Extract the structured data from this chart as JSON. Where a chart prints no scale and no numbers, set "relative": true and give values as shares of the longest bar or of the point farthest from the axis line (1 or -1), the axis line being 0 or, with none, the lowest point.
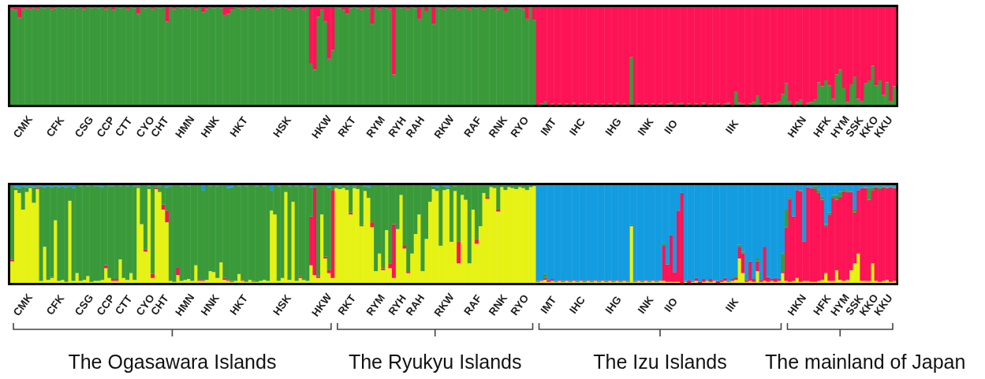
{
  "chart_data": [
    {
      "type": "bar",
      "stacked": true,
      "relative": true,
      "categories": [
        null,
        null,
        null,
        "CMK",
        null,
        null,
        null,
        null,
        null,
        null,
        null,
        null,
        "CFK",
        null,
        null,
        null,
        null,
        null,
        null,
        null,
        "CSG",
        null,
        null,
        null,
        null,
        null,
        "CCP",
        null,
        null,
        null,
        null,
        "CTT",
        null,
        null,
        null,
        null,
        null,
        "CYO",
        null,
        null,
        null,
        "CHT",
        null,
        null,
        null,
        null,
        null,
        null,
        "HMN",
        null,
        null,
        null,
        null,
        null,
        null,
        "HNK",
        null,
        null,
        null,
        null,
        null,
        null,
        null,
        "HKT",
        null,
        null,
        null,
        null,
        null,
        null,
        null,
        null,
        null,
        null,
        null,
        "HSK",
        null,
        null,
        null,
        null,
        null,
        null,
        null,
        null,
        null,
        null,
        "HKW",
        null,
        null,
        null,
        null,
        null,
        null,
        "RKT",
        null,
        null,
        null,
        null,
        null,
        null,
        null,
        "RYM",
        null,
        null,
        null,
        null,
        null,
        "RYH",
        null,
        null,
        null,
        null,
        "RAH",
        null,
        null,
        null,
        null,
        null,
        null,
        null,
        "RKW",
        null,
        null,
        null,
        null,
        null,
        null,
        null,
        "RAF",
        null,
        null,
        null,
        null,
        null,
        null,
        "RNK",
        null,
        null,
        null,
        null,
        null,
        "RYO",
        null,
        null,
        null,
        null,
        null,
        null,
        null,
        "IMT",
        null,
        null,
        null,
        null,
        null,
        null,
        null,
        "IHC",
        null,
        null,
        null,
        null,
        null,
        null,
        null,
        null,
        null,
        "IHG",
        null,
        null,
        null,
        null,
        null,
        null,
        null,
        null,
        "INK",
        null,
        null,
        null,
        null,
        null,
        null,
        "IIO",
        null,
        null,
        null,
        null,
        null,
        null,
        null,
        null,
        null,
        null,
        null,
        null,
        null,
        null,
        null,
        null,
        "IIK",
        null,
        null,
        null,
        null,
        null,
        null,
        null,
        null,
        null,
        null,
        null,
        null,
        null,
        null,
        null,
        null,
        null,
        "HKN",
        null,
        null,
        null,
        null,
        null,
        null,
        "HFK",
        null,
        null,
        null,
        null,
        "HYM",
        null,
        null,
        null,
        "SSK",
        null,
        null,
        null,
        "KKO",
        null,
        null,
        null,
        "KKU",
        null,
        null,
        null
      ],
      "series": [
        {
          "color": "#3a9a3a",
          "values": [
            0.98,
            0.97,
            0.89,
            0.98,
            0.99,
            0.98,
            0.99,
            0.98,
            1,
            0.99,
            1,
            0.98,
            0.99,
            1,
            0.99,
            1,
            0.99,
            1,
            0.99,
            1,
            0.98,
            1,
            0.99,
            1,
            0.99,
            1,
            0.98,
            1,
            0.97,
            1,
            0.99,
            1,
            0.98,
            1,
            0.99,
            0.93,
            1,
            0.99,
            1,
            0.98,
            1,
            0.99,
            1,
            0.85,
            1,
            0.98,
            1,
            0.99,
            1,
            0.99,
            1,
            0.98,
            1,
            0.95,
            0.98,
            1,
            0.99,
            1,
            0.99,
            0.92,
            0.93,
            0.97,
            1,
            0.99,
            0.98,
            1,
            0.99,
            1,
            0.98,
            1,
            0.99,
            1,
            0.98,
            1,
            0.99,
            1,
            0.99,
            0.98,
            1,
            0.99,
            1,
            0.98,
            1,
            0.42,
            0.36,
            0.9,
            0.97,
            0.85,
            0.47,
            0.56,
            1,
            0.99,
            0.97,
            0.93,
            0.99,
            1,
            0.99,
            0.98,
            1,
            0.99,
            0.83,
            1,
            0.98,
            1,
            0.99,
            0.98,
            0.31,
            1,
            0.99,
            1,
            0.98,
            1,
            0.99,
            0.88,
            1,
            0.96,
            1,
            0.83,
            1,
            0.99,
            0.98,
            1,
            0.99,
            1,
            0.98,
            1,
            0.99,
            0.98,
            1,
            0.99,
            1,
            0.98,
            1,
            0.99,
            1,
            0.98,
            1,
            0.96,
            1,
            0.99,
            1,
            0.99,
            0.98,
            0.88,
            1,
            0.87,
            0,
            0.01,
            0.04,
            0,
            0.01,
            0,
            0.01,
            0,
            0.01,
            0,
            0.02,
            0,
            0.01,
            0,
            0.01,
            0,
            0.01,
            0,
            0.01,
            0,
            0.01,
            0,
            0.02,
            0,
            0.01,
            0,
            0.49,
            0,
            0.01,
            0,
            0.01,
            0,
            0.01,
            0,
            0.01,
            0,
            0.01,
            0.02,
            0,
            0.01,
            0.02,
            0,
            0.01,
            0,
            0.01,
            0,
            0.02,
            0,
            0.01,
            0,
            0.01,
            0,
            0.01,
            0.02,
            0,
            0.13,
            0.02,
            0.01,
            0,
            0.01,
            0.03,
            0.09,
            0.01,
            0,
            0.02,
            0.01,
            0.02,
            0.04,
            0.11,
            0.22,
            0.04,
            0,
            0.03,
            0.05,
            0,
            0.02,
            0.03,
            0.05,
            0.23,
            0.19,
            0.25,
            0.2,
            0.06,
            0.31,
            0.36,
            0.17,
            0.03,
            0.21,
            0.29,
            0.06,
            0.04,
            0.22,
            0.25,
            0.4,
            0.2,
            0.25,
            0.1,
            0.23,
            0.04,
            0.19
          ]
        },
        {
          "color": "#fd1456",
          "values": [
            0.02,
            0.03,
            0.11,
            0.02,
            0.01,
            0.02,
            0.01,
            0.02,
            0,
            0.01,
            0,
            0.02,
            0.01,
            0,
            0.01,
            0,
            0.01,
            0,
            0.01,
            0,
            0.02,
            0,
            0.01,
            0,
            0.01,
            0,
            0.02,
            0,
            0.03,
            0,
            0.01,
            0,
            0.02,
            0,
            0.01,
            0.07,
            0,
            0.01,
            0,
            0.02,
            0,
            0.01,
            0,
            0.15,
            0,
            0.02,
            0,
            0.01,
            0,
            0.01,
            0,
            0.02,
            0,
            0.05,
            0.02,
            0,
            0.01,
            0,
            0.01,
            0.08,
            0.07,
            0.03,
            0,
            0.01,
            0.02,
            0,
            0.01,
            0,
            0.02,
            0,
            0.01,
            0,
            0.02,
            0,
            0.01,
            0,
            0.01,
            0.02,
            0,
            0.01,
            0,
            0.02,
            0,
            0.58,
            0.64,
            0.1,
            0.03,
            0.15,
            0.53,
            0.44,
            0,
            0.01,
            0.03,
            0.07,
            0.01,
            0,
            0.01,
            0.02,
            0,
            0.01,
            0.17,
            0,
            0.02,
            0,
            0.01,
            0.02,
            0.69,
            0,
            0.01,
            0,
            0.02,
            0,
            0.01,
            0.12,
            0,
            0.04,
            0,
            0.17,
            0,
            0.01,
            0.02,
            0,
            0.01,
            0,
            0.02,
            0,
            0.01,
            0.02,
            0,
            0.01,
            0,
            0.02,
            0,
            0.01,
            0,
            0.02,
            0,
            0.04,
            0,
            0.01,
            0,
            0.01,
            0.02,
            0.12,
            0,
            0.13,
            1,
            0.99,
            0.96,
            1,
            0.99,
            1,
            0.99,
            1,
            0.99,
            1,
            0.98,
            1,
            0.99,
            1,
            0.99,
            1,
            0.99,
            1,
            0.99,
            1,
            0.99,
            1,
            0.98,
            1,
            0.99,
            1,
            0.51,
            1,
            0.99,
            1,
            0.99,
            1,
            0.99,
            1,
            0.99,
            1,
            0.99,
            0.98,
            1,
            0.99,
            0.98,
            1,
            0.99,
            1,
            0.99,
            1,
            0.98,
            1,
            0.99,
            1,
            0.99,
            1,
            0.99,
            0.98,
            1,
            0.87,
            0.98,
            0.99,
            1,
            0.99,
            0.97,
            0.91,
            0.99,
            1,
            0.98,
            0.99,
            0.98,
            0.96,
            0.89,
            0.78,
            0.96,
            1,
            0.97,
            0.95,
            1,
            0.98,
            0.97,
            0.95,
            0.77,
            0.81,
            0.75,
            0.8,
            0.94,
            0.69,
            0.64,
            0.83,
            0.97,
            0.79,
            0.71,
            0.94,
            0.96,
            0.78,
            0.75,
            0.6,
            0.8,
            0.75,
            0.9,
            0.77,
            0.96,
            0.81
          ]
        }
      ]
    },
    {
      "type": "bar",
      "stacked": true,
      "relative": true,
      "categories": [
        null,
        null,
        null,
        "CMK",
        null,
        null,
        null,
        null,
        null,
        null,
        null,
        null,
        "CFK",
        null,
        null,
        null,
        null,
        null,
        null,
        null,
        "CSG",
        null,
        null,
        null,
        null,
        null,
        "CCP",
        null,
        null,
        null,
        null,
        "CTT",
        null,
        null,
        null,
        null,
        null,
        "CYO",
        null,
        null,
        null,
        "CHT",
        null,
        null,
        null,
        null,
        null,
        null,
        "HMN",
        null,
        null,
        null,
        null,
        null,
        null,
        "HNK",
        null,
        null,
        null,
        null,
        null,
        null,
        null,
        "HKT",
        null,
        null,
        null,
        null,
        null,
        null,
        null,
        null,
        null,
        null,
        null,
        "HSK",
        null,
        null,
        null,
        null,
        null,
        null,
        null,
        null,
        null,
        null,
        "HKW",
        null,
        null,
        null,
        null,
        null,
        null,
        "RKT",
        null,
        null,
        null,
        null,
        null,
        null,
        null,
        "RYM",
        null,
        null,
        null,
        null,
        null,
        "RYH",
        null,
        null,
        null,
        null,
        "RAH",
        null,
        null,
        null,
        null,
        null,
        null,
        null,
        "RKW",
        null,
        null,
        null,
        null,
        null,
        null,
        null,
        "RAF",
        null,
        null,
        null,
        null,
        null,
        null,
        "RNK",
        null,
        null,
        null,
        null,
        null,
        "RYO",
        null,
        null,
        null,
        null,
        null,
        null,
        null,
        "IMT",
        null,
        null,
        null,
        null,
        null,
        null,
        null,
        "IHC",
        null,
        null,
        null,
        null,
        null,
        null,
        null,
        null,
        null,
        "IHG",
        null,
        null,
        null,
        null,
        null,
        null,
        null,
        null,
        "INK",
        null,
        null,
        null,
        null,
        null,
        null,
        "IIO",
        null,
        null,
        null,
        null,
        null,
        null,
        null,
        null,
        null,
        null,
        null,
        null,
        null,
        null,
        null,
        null,
        "IIK",
        null,
        null,
        null,
        null,
        null,
        null,
        null,
        null,
        null,
        null,
        null,
        null,
        null,
        null,
        null,
        null,
        null,
        "HKN",
        null,
        null,
        null,
        null,
        null,
        null,
        "HFK",
        null,
        null,
        null,
        null,
        "HYM",
        null,
        null,
        null,
        "SSK",
        null,
        null,
        null,
        "KKO",
        null,
        null,
        null,
        "KKU",
        null,
        null,
        null
      ],
      "series": [
        {
          "color": "#e6f214",
          "values": [
            0.22,
            0.95,
            0.92,
            0.75,
            0.93,
            0.97,
            0.82,
            0.96,
            0.02,
            0.37,
            0.03,
            0.05,
            0.64,
            0.02,
            0.03,
            0.01,
            0.84,
            0.02,
            0.1,
            0.02,
            0.03,
            0.07,
            0.01,
            0.02,
            0.02,
            0.03,
            0.15,
            0.05,
            0.02,
            0.02,
            0.24,
            0.05,
            0.03,
            0.1,
            0.03,
            0.97,
            0.6,
            0.32,
            0.96,
            0.05,
            0.96,
            0.93,
            0.75,
            0.62,
            0.02,
            0.01,
            0.08,
            0.02,
            0.03,
            0.04,
            0.02,
            0.18,
            0.02,
            0.02,
            0.03,
            0.12,
            0.11,
            0.05,
            0.21,
            0.03,
            0.02,
            0.01,
            0.02,
            0.09,
            0.02,
            0.01,
            0.03,
            0.01,
            0.01,
            0.02,
            0.03,
            0.02,
            0.74,
            0.7,
            0.02,
            0.05,
            0.93,
            0.03,
            0.83,
            0.02,
            0.05,
            0.03,
            0.02,
            0.18,
            0.08,
            0.05,
            0.7,
            0.25,
            0.1,
            0.05,
            0.97,
            0.96,
            0.97,
            0.95,
            0.7,
            0.97,
            0.96,
            0.58,
            0.94,
            0.87,
            0.57,
            0.12,
            0.3,
            0.13,
            0.54,
            0.15,
            0.05,
            0.55,
            0.9,
            0.35,
            0.1,
            0.3,
            0.5,
            0.7,
            0.12,
            0.45,
            0.83,
            0.96,
            0.94,
            0.38,
            0.95,
            0.96,
            0.42,
            0.94,
            0.2,
            0.9,
            0.85,
            0.2,
            0.75,
            0.4,
            0.58,
            0.92,
            0.86,
            0.98,
            0.97,
            0.73,
            0.98,
            0.95,
            0.98,
            0.97,
            0.96,
            0.98,
            0.97,
            0.95,
            0.98,
            0.99,
            0.01,
            0.02,
            0.03,
            0.01,
            0.02,
            0.01,
            0.02,
            0.01,
            0.02,
            0.01,
            0.02,
            0.01,
            0.02,
            0.01,
            0.02,
            0.01,
            0.02,
            0.01,
            0.02,
            0.01,
            0.02,
            0.01,
            0.02,
            0.01,
            0.02,
            0.01,
            0.58,
            0.01,
            0.02,
            0.01,
            0.02,
            0.01,
            0.02,
            0.01,
            0.02,
            0.02,
            0.01,
            0.01,
            0.01,
            0.01,
            0,
            0.01,
            0,
            0.01,
            0.02,
            0,
            0.01,
            0.02,
            0.01,
            0.02,
            0,
            0.01,
            0.02,
            0.01,
            0.02,
            0.03,
            0.25,
            0.1,
            0.01,
            0.02,
            0.01,
            0.12,
            0.01,
            0.02,
            0.01,
            0.02,
            0.01,
            0.02,
            0.1,
            0.02,
            0.01,
            0.02,
            0.05,
            0.01,
            0.02,
            0.02,
            0.01,
            0.01,
            0.02,
            0.03,
            0.1,
            0.02,
            0.02,
            0.13,
            0.03,
            0.02,
            0.03,
            0.13,
            0.2,
            0.3,
            0.02,
            0.02,
            0.02,
            0.2,
            0.02,
            0.01,
            0.02,
            0.03,
            0.01,
            0.02
          ]
        },
        {
          "color": "#fd1456",
          "values": [
            0.02,
            0.01,
            0,
            0,
            0,
            0,
            0,
            0.01,
            0,
            0,
            0,
            0.01,
            0,
            0,
            0,
            0,
            0,
            0,
            0,
            0,
            0,
            0,
            0,
            0,
            0,
            0,
            0.03,
            0,
            0.02,
            0.02,
            0,
            0,
            0,
            0,
            0,
            0,
            0,
            0.02,
            0,
            0.04,
            0.02,
            0,
            0.05,
            0.12,
            0,
            0,
            0.08,
            0,
            0,
            0,
            0,
            0,
            0.01,
            0.01,
            0,
            0,
            0,
            0,
            0,
            0.02,
            0.01,
            0.01,
            0,
            0,
            0.01,
            0,
            0,
            0.01,
            0,
            0,
            0,
            0,
            0,
            0,
            0,
            0,
            0,
            0,
            0,
            0,
            0.02,
            0,
            0,
            0.5,
            0.9,
            0.02,
            0,
            0.02,
            0.03,
            0.9,
            0,
            0,
            0,
            0,
            0.02,
            0,
            0,
            0.01,
            0,
            0,
            0.05,
            0,
            0,
            0.02,
            0,
            0.05,
            0.55,
            0,
            0,
            0.03,
            0.02,
            0,
            0,
            0,
            0,
            0,
            0,
            0,
            0,
            0,
            0,
            0,
            0,
            0,
            0.22,
            0,
            0,
            0,
            0,
            0.05,
            0,
            0,
            0.02,
            0,
            0,
            0.02,
            0,
            0,
            0,
            0,
            0,
            0,
            0,
            0,
            0,
            0,
            0.01,
            0.01,
            0.02,
            0.02,
            0.02,
            0.01,
            0.01,
            0.01,
            0.01,
            0.01,
            0.01,
            0.01,
            0.01,
            0.01,
            0.01,
            0.01,
            0.01,
            0.01,
            0.01,
            0.01,
            0.01,
            0.01,
            0.01,
            0.01,
            0.01,
            0.01,
            0.01,
            0.01,
            0.01,
            0.01,
            0.01,
            0.01,
            0.01,
            0.01,
            0.01,
            0.36,
            0.18,
            0.48,
            0.1,
            0.73,
            0.92,
            0.01,
            0.03,
            0.01,
            0.03,
            0.01,
            0.03,
            0.01,
            0.03,
            0.01,
            0.02,
            0.02,
            0.03,
            0.01,
            0.02,
            0.03,
            0.12,
            0.2,
            0.02,
            0.2,
            0.03,
            0.1,
            0.02,
            0.35,
            0.05,
            0.02,
            0.04,
            0.02,
            0.02,
            0.55,
            0.85,
            0.66,
            0.9,
            0.93,
            0.4,
            0.96,
            0.96,
            0.95,
            0.9,
            0.82,
            0.48,
            0.68,
            0.85,
            0.72,
            0.85,
            0.92,
            0.9,
            0.8,
            0.52,
            0.65,
            0.95,
            0.95,
            0.83,
            0.75,
            0.96,
            0.95,
            0.96,
            0.94,
            0.97,
            0.95
          ]
        },
        {
          "color": "#3a9a3a",
          "values": [
            0.76,
            0.02,
            0.05,
            0.24,
            0.05,
            0.02,
            0.16,
            0.02,
            0.97,
            0.61,
            0.96,
            0.92,
            0.35,
            0.96,
            0.96,
            0.97,
            0.15,
            0.95,
            0.9,
            0.97,
            0.97,
            0.92,
            0.99,
            0.97,
            0.97,
            0.95,
            0.82,
            0.94,
            0.95,
            0.96,
            0.75,
            0.95,
            0.96,
            0.9,
            0.96,
            0.02,
            0.4,
            0.66,
            0.03,
            0.91,
            0.02,
            0.06,
            0.2,
            0.24,
            0.97,
            0.99,
            0.84,
            0.97,
            0.97,
            0.95,
            0.98,
            0.82,
            0.97,
            0.92,
            0.97,
            0.87,
            0.89,
            0.94,
            0.79,
            0.95,
            0.94,
            0.96,
            0.98,
            0.9,
            0.97,
            0.98,
            0.97,
            0.98,
            0.98,
            0.98,
            0.96,
            0.98,
            0.21,
            0.3,
            0.97,
            0.95,
            0.07,
            0.96,
            0.17,
            0.97,
            0.93,
            0.96,
            0.98,
            0.3,
            0.02,
            0.93,
            0.3,
            0.73,
            0.85,
            0.05,
            0.03,
            0.03,
            0.03,
            0.04,
            0.28,
            0.02,
            0.04,
            0.41,
            0.05,
            0.11,
            0.38,
            0.88,
            0.7,
            0.85,
            0.45,
            0.8,
            0.4,
            0.45,
            0.1,
            0.62,
            0.88,
            0.7,
            0.5,
            0.3,
            0.88,
            0.55,
            0.17,
            0.03,
            0.04,
            0.62,
            0.04,
            0.02,
            0.58,
            0.05,
            0.58,
            0.1,
            0.15,
            0.8,
            0.25,
            0.55,
            0.42,
            0.08,
            0.12,
            0.02,
            0.03,
            0.25,
            0.02,
            0.05,
            0.02,
            0.03,
            0.04,
            0.02,
            0.03,
            0.05,
            0.02,
            0.01,
            0,
            0,
            0.04,
            0,
            0,
            0,
            0,
            0,
            0,
            0,
            0,
            0,
            0,
            0,
            0,
            0,
            0,
            0,
            0,
            0,
            0,
            0,
            0,
            0,
            0,
            0,
            0,
            0,
            0,
            0,
            0,
            0,
            0,
            0,
            0,
            0.03,
            0,
            0,
            0,
            0,
            0,
            0,
            0,
            0,
            0,
            0,
            0,
            0,
            0,
            0,
            0,
            0,
            0,
            0,
            0,
            0.02,
            0.02,
            0.02,
            0,
            0,
            0,
            0.03,
            0,
            0,
            0,
            0,
            0,
            0,
            0.18,
            0.18,
            0.02,
            0,
            0,
            0.01,
            0,
            0,
            0,
            0.03,
            0.03,
            0.03,
            0.02,
            0.02,
            0.03,
            0.05,
            0.05,
            0.02,
            0.02,
            0,
            0.03,
            0,
            0,
            0.01,
            0.12,
            0.03,
            0.01,
            0.02,
            0.01,
            0.01,
            0.01,
            0.01
          ]
        },
        {
          "color": "#139ce0",
          "values": [
            0,
            0.02,
            0.03,
            0.01,
            0.02,
            0.01,
            0.02,
            0.01,
            0.01,
            0.02,
            0.01,
            0.02,
            0.01,
            0.02,
            0.01,
            0.02,
            0.01,
            0.03,
            0,
            0.01,
            0,
            0.01,
            0,
            0.01,
            0.01,
            0.02,
            0,
            0.01,
            0.01,
            0,
            0.01,
            0,
            0.01,
            0,
            0.01,
            0.01,
            0,
            0,
            0.01,
            0,
            0,
            0.01,
            0,
            0.02,
            0.01,
            0,
            0,
            0.01,
            0,
            0.01,
            0,
            0,
            0,
            0.05,
            0,
            0.01,
            0,
            0.01,
            0,
            0,
            0.03,
            0.02,
            0,
            0.01,
            0,
            0.01,
            0,
            0,
            0.01,
            0,
            0.01,
            0,
            0.05,
            0,
            0.01,
            0,
            0,
            0.01,
            0,
            0.01,
            0,
            0.01,
            0,
            0.02,
            0,
            0,
            0,
            0,
            0.02,
            0,
            0,
            0.01,
            0,
            0.01,
            0,
            0.01,
            0,
            0,
            0.01,
            0.02,
            0,
            0,
            0,
            0,
            0.01,
            0,
            0,
            0,
            0,
            0,
            0,
            0,
            0,
            0,
            0,
            0,
            0,
            0.01,
            0.02,
            0,
            0.01,
            0.02,
            0,
            0.01,
            0,
            0,
            0,
            0,
            0,
            0,
            0,
            0,
            0,
            0,
            0,
            0,
            0,
            0,
            0,
            0,
            0,
            0,
            0,
            0,
            0,
            0,
            0.98,
            0.97,
            0.91,
            0.97,
            0.96,
            0.98,
            0.97,
            0.98,
            0.97,
            0.98,
            0.97,
            0.98,
            0.97,
            0.98,
            0.97,
            0.98,
            0.97,
            0.98,
            0.97,
            0.98,
            0.97,
            0.98,
            0.97,
            0.98,
            0.97,
            0.98,
            0.41,
            0.98,
            0.97,
            0.98,
            0.97,
            0.98,
            0.97,
            0.98,
            0.97,
            0.59,
            0.81,
            0.51,
            0.89,
            0.26,
            0.08,
            0.98,
            0.97,
            0.98,
            0.95,
            0.99,
            0.96,
            0.97,
            0.96,
            0.97,
            0.98,
            0.97,
            0.95,
            0.98,
            0.96,
            0.92,
            0.61,
            0.68,
            0.97,
            0.78,
            0.96,
            0.75,
            0.97,
            0.63,
            0.94,
            0.96,
            0.95,
            0.96,
            0.7,
            0.25,
            0.12,
            0.32,
            0.05,
            0.05,
            0.58,
            0.02,
            0.03,
            0.01,
            0.05,
            0.12,
            0.4,
            0.28,
            0.1,
            0.1,
            0.07,
            0.04,
            0.05,
            0.07,
            0.25,
            0.05,
            0.03,
            0.02,
            0.03,
            0.02,
            0.01,
            0.02,
            0.01,
            0.02,
            0.01,
            0.02
          ]
        }
      ],
      "annotations": [
        "The Ogasawara Islands",
        "The Ryukyu Islands",
        "The Izu Islands",
        "The mainland of Japan"
      ]
    }
  ]
}
